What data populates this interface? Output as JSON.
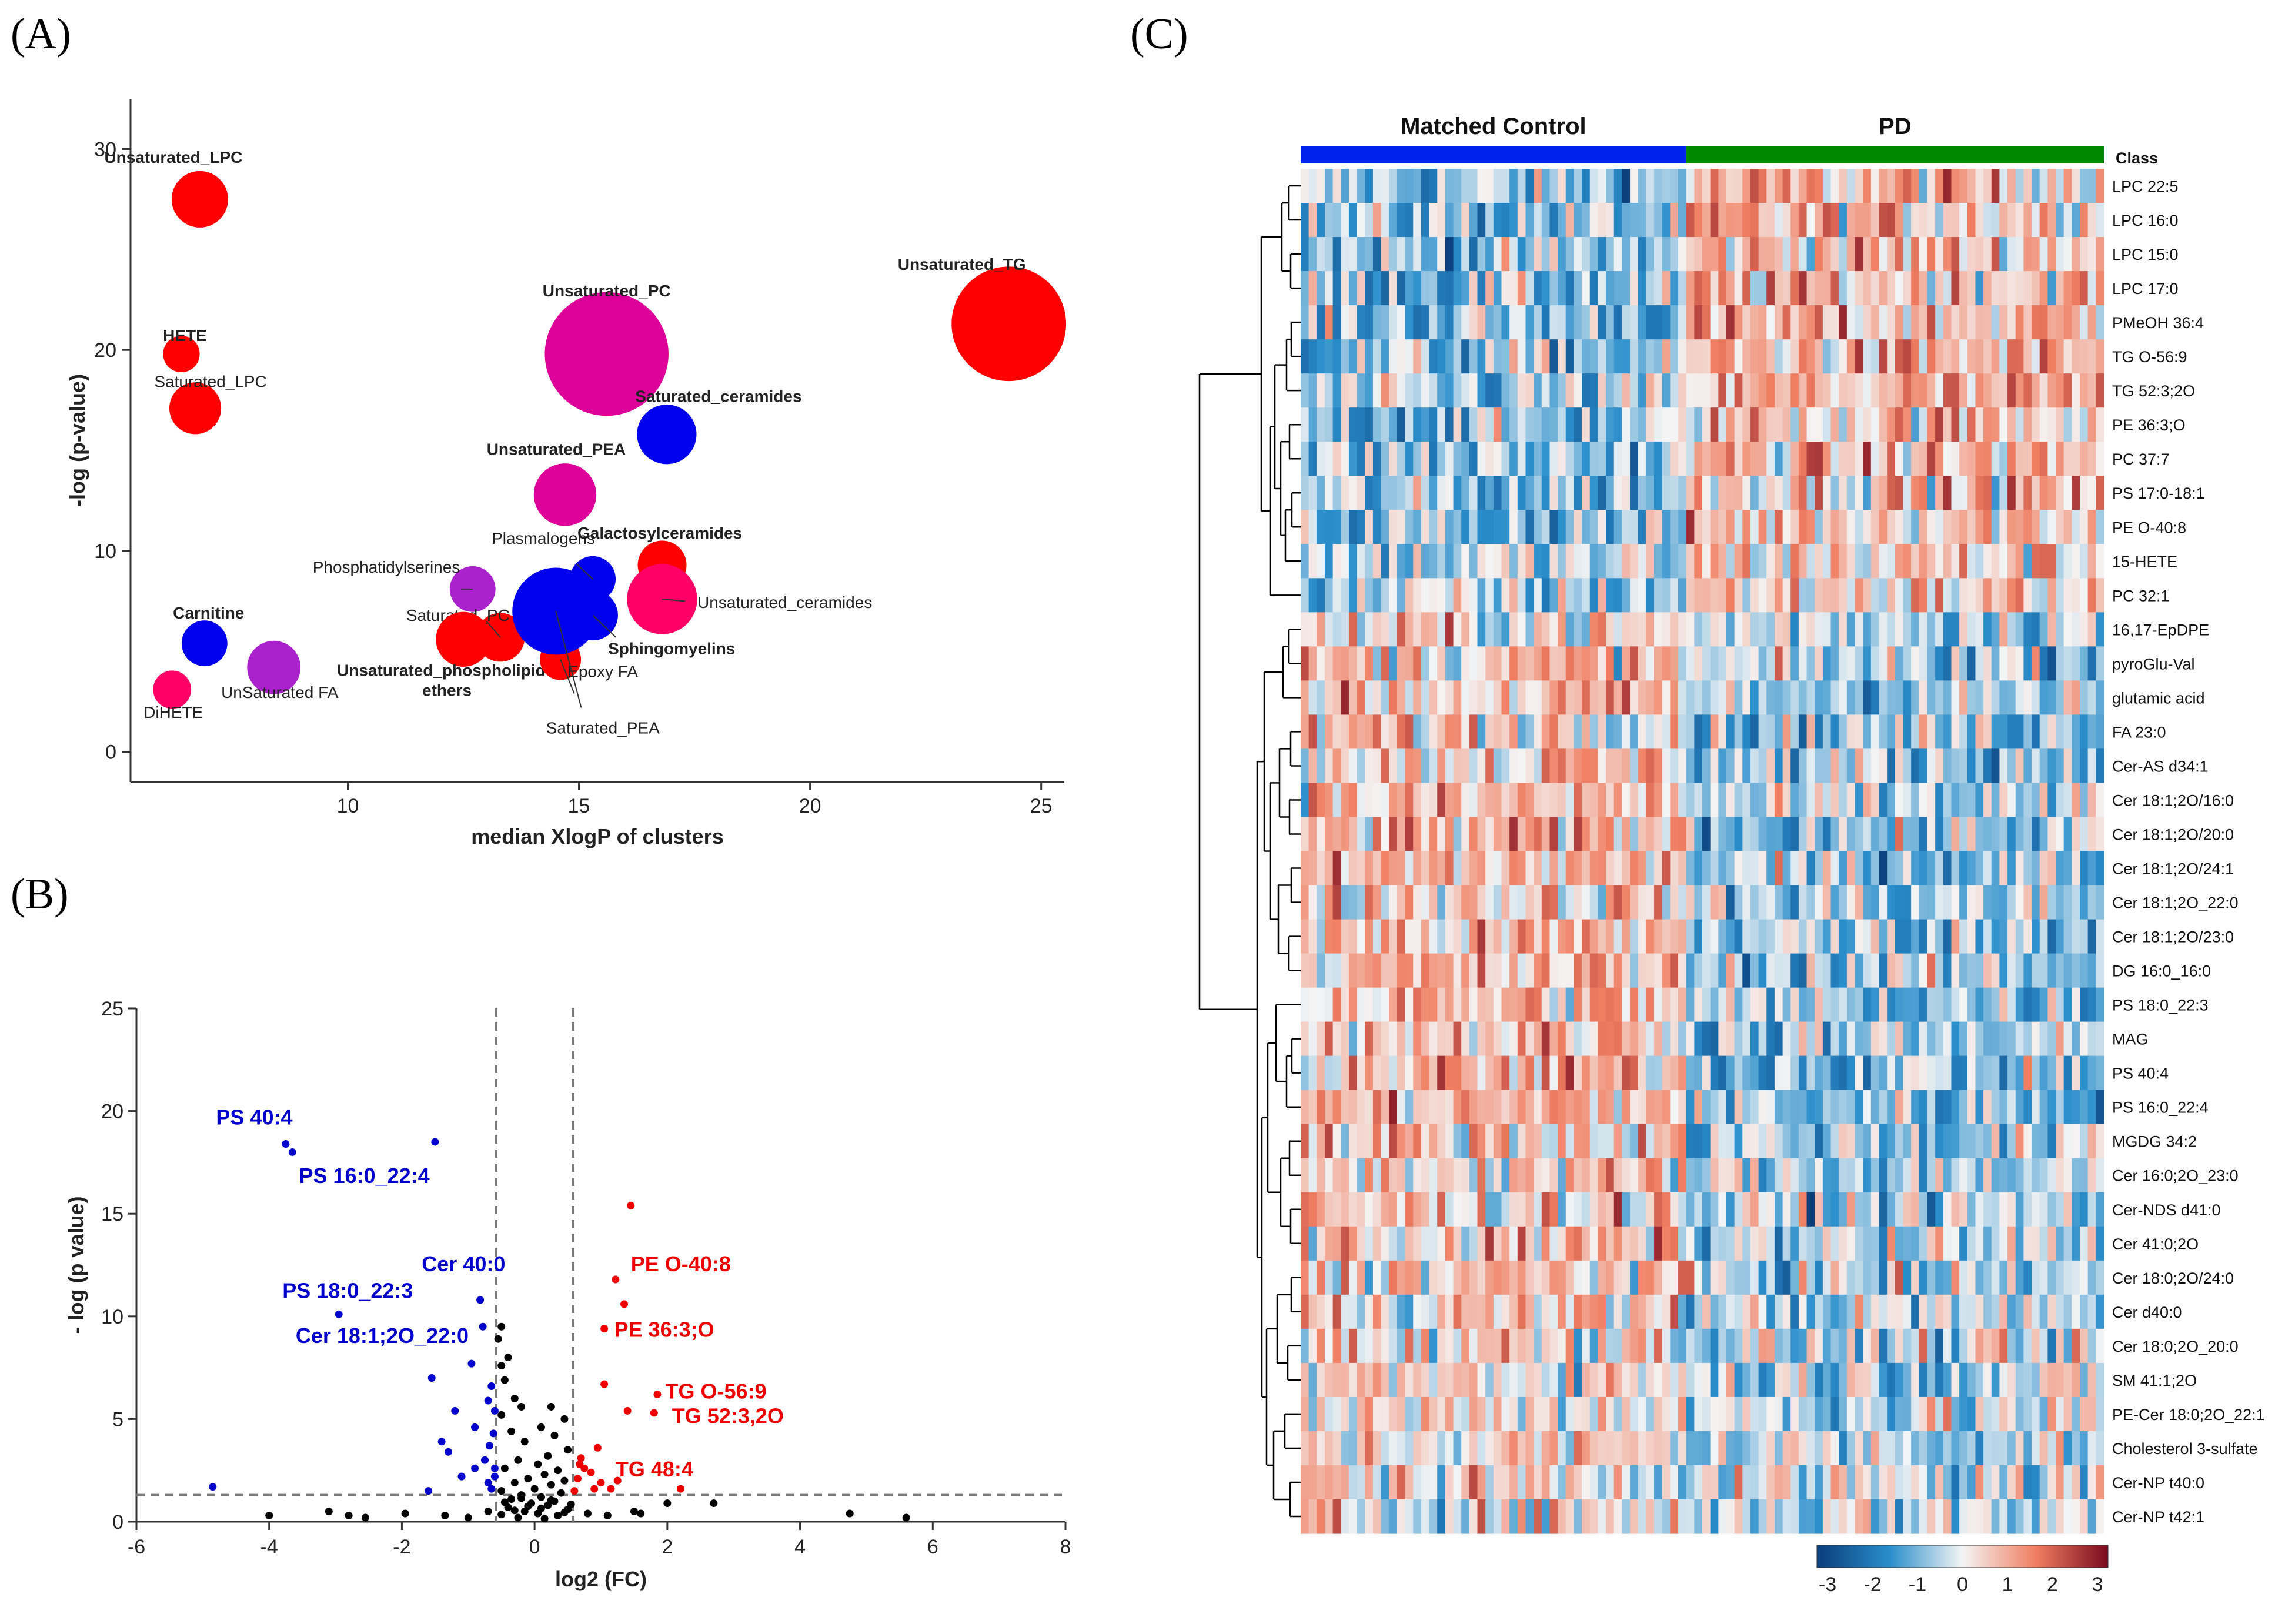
{
  "panels": {
    "a": "(A)",
    "b": "(B)",
    "c": "(C)"
  },
  "chart_data": [
    {
      "type": "scatter",
      "subtype": "bubble",
      "panel": "(A)",
      "title": "",
      "xlabel": "median XlogP of clusters",
      "ylabel": "-log (p-value)",
      "xlim": [
        5.3,
        25.5
      ],
      "ylim": [
        -1.5,
        32.5
      ],
      "xticks": [
        10,
        15,
        20,
        25
      ],
      "yticks": [
        0,
        10,
        20,
        30
      ],
      "colors": {
        "red": "#ff0000",
        "blue": "#0000ee",
        "magenta": "#dd0099",
        "purple": "#aa22cc",
        "pink": "#ff0066"
      },
      "points": [
        {
          "label": "Unsaturated_LPC",
          "x": 6.8,
          "y": 27.5,
          "size": 1.0,
          "color": "red",
          "bold": true
        },
        {
          "label": "HETE",
          "x": 6.4,
          "y": 19.8,
          "size": 0.35,
          "color": "red",
          "bold": true
        },
        {
          "label": "Saturated_LPC",
          "x": 6.7,
          "y": 17.1,
          "size": 0.85,
          "color": "red",
          "bold": false
        },
        {
          "label": "Unsaturated_TG",
          "x": 24.3,
          "y": 21.3,
          "size": 2.9,
          "color": "red",
          "bold": true
        },
        {
          "label": "Unsaturated_PC",
          "x": 15.6,
          "y": 19.8,
          "size": 3.2,
          "color": "magenta",
          "bold": true
        },
        {
          "label": "Saturated_ceramides",
          "x": 16.9,
          "y": 15.8,
          "size": 1.1,
          "color": "blue",
          "bold": true
        },
        {
          "label": "Unsaturated_PEA",
          "x": 14.7,
          "y": 12.8,
          "size": 1.2,
          "color": "magenta",
          "bold": true
        },
        {
          "label": "Galactosylceramides",
          "x": 16.8,
          "y": 9.3,
          "size": 0.75,
          "color": "red",
          "bold": true
        },
        {
          "label": "Plasmalogens",
          "x": 15.3,
          "y": 8.6,
          "size": 0.65,
          "color": "blue",
          "bold": false
        },
        {
          "label": "Unsaturated_ceramides",
          "x": 16.8,
          "y": 7.6,
          "size": 1.45,
          "color": "pink",
          "bold": false
        },
        {
          "label": "Phosphatidylserines",
          "x": 12.7,
          "y": 8.1,
          "size": 0.65,
          "color": "purple",
          "bold": false
        },
        {
          "label": "Sphingomyelins",
          "x": 15.3,
          "y": 6.8,
          "size": 0.8,
          "color": "blue",
          "bold": true
        },
        {
          "label": "Saturated_PC",
          "x": 13.3,
          "y": 5.7,
          "size": 0.75,
          "color": "red",
          "bold": false
        },
        {
          "label": "Unsaturated_phospholipid ethers",
          "x": 12.5,
          "y": 5.6,
          "size": 0.95,
          "color": "red",
          "bold": true
        },
        {
          "label": "Carnitine",
          "x": 6.9,
          "y": 5.4,
          "size": 0.65,
          "color": "blue",
          "bold": true
        },
        {
          "label": "UnSaturated FA",
          "x": 8.4,
          "y": 4.2,
          "size": 0.9,
          "color": "purple",
          "bold": false
        },
        {
          "label": "Epoxy FA",
          "x": 14.6,
          "y": 4.6,
          "size": 0.5,
          "color": "red",
          "bold": false
        },
        {
          "label": "Saturated_PEA",
          "x": 14.5,
          "y": 7.0,
          "size": 2.0,
          "color": "blue",
          "bold": false
        },
        {
          "label": "DiHETE",
          "x": 6.2,
          "y": 3.1,
          "size": 0.4,
          "color": "pink",
          "bold": false
        }
      ]
    },
    {
      "type": "scatter",
      "subtype": "volcano",
      "panel": "(B)",
      "title": "",
      "xlabel": "log2 (FC)",
      "ylabel": "- log (p value)",
      "xlim": [
        -6,
        8
      ],
      "ylim": [
        0,
        25
      ],
      "xticks": [
        -6,
        -4,
        -2,
        0,
        2,
        4,
        6,
        8
      ],
      "yticks": [
        0,
        5,
        10,
        15,
        20,
        25
      ],
      "thresholds": {
        "fc_low": -0.58,
        "fc_high": 0.58,
        "p": 1.3
      },
      "series": [
        {
          "name": "down",
          "color": "#0000cc",
          "points": [
            [
              -3.75,
              18.4
            ],
            [
              -3.65,
              18.0
            ],
            [
              -1.5,
              18.5
            ],
            [
              -2.95,
              10.1
            ],
            [
              -0.82,
              10.8
            ],
            [
              -0.78,
              9.5
            ],
            [
              -1.55,
              7.0
            ],
            [
              -0.95,
              7.7
            ],
            [
              -0.65,
              6.6
            ],
            [
              -0.7,
              5.9
            ],
            [
              -0.6,
              5.4
            ],
            [
              -1.2,
              5.4
            ],
            [
              -0.9,
              4.6
            ],
            [
              -1.4,
              3.9
            ],
            [
              -1.3,
              3.4
            ],
            [
              -0.75,
              3.0
            ],
            [
              -0.6,
              2.6
            ],
            [
              -1.6,
              1.5
            ],
            [
              -1.1,
              2.2
            ],
            [
              -0.65,
              1.6
            ],
            [
              -0.7,
              1.9
            ],
            [
              -4.85,
              1.7
            ],
            [
              -0.62,
              4.3
            ],
            [
              -0.68,
              3.7
            ],
            [
              -0.6,
              2.2
            ],
            [
              -0.9,
              2.6
            ]
          ]
        },
        {
          "name": "up",
          "color": "#ee0000",
          "points": [
            [
              1.45,
              15.4
            ],
            [
              1.22,
              11.8
            ],
            [
              1.35,
              10.6
            ],
            [
              1.05,
              9.4
            ],
            [
              1.05,
              6.7
            ],
            [
              1.85,
              6.2
            ],
            [
              1.4,
              5.4
            ],
            [
              1.8,
              5.3
            ],
            [
              0.95,
              3.6
            ],
            [
              0.75,
              2.6
            ],
            [
              0.65,
              2.1
            ],
            [
              0.85,
              2.4
            ],
            [
              1.0,
              1.9
            ],
            [
              0.7,
              3.1
            ],
            [
              1.15,
              1.6
            ],
            [
              0.9,
              1.6
            ],
            [
              2.2,
              1.6
            ],
            [
              0.68,
              2.8
            ],
            [
              0.6,
              1.5
            ],
            [
              1.25,
              2.0
            ]
          ]
        },
        {
          "name": "not significant",
          "color": "#000000",
          "points": [
            [
              -0.5,
              9.5
            ],
            [
              -0.55,
              8.9
            ],
            [
              -0.4,
              8.0
            ],
            [
              -0.5,
              7.6
            ],
            [
              -0.45,
              6.9
            ],
            [
              -0.3,
              6.0
            ],
            [
              -0.5,
              5.2
            ],
            [
              -0.2,
              5.6
            ],
            [
              0.25,
              5.6
            ],
            [
              0.45,
              5.0
            ],
            [
              0.1,
              4.6
            ],
            [
              -0.35,
              4.4
            ],
            [
              0.3,
              4.2
            ],
            [
              -0.15,
              3.9
            ],
            [
              0.5,
              3.5
            ],
            [
              0.2,
              3.2
            ],
            [
              -0.25,
              3.0
            ],
            [
              0.05,
              2.8
            ],
            [
              -0.45,
              2.6
            ],
            [
              0.35,
              2.5
            ],
            [
              0.15,
              2.3
            ],
            [
              -0.1,
              2.1
            ],
            [
              0.45,
              2.0
            ],
            [
              -0.3,
              1.9
            ],
            [
              0.25,
              1.8
            ],
            [
              0.0,
              1.6
            ],
            [
              -0.5,
              1.5
            ],
            [
              0.4,
              1.4
            ],
            [
              -0.2,
              1.3
            ],
            [
              0.1,
              1.2
            ],
            [
              -0.35,
              1.1
            ],
            [
              0.3,
              1.0
            ],
            [
              -0.05,
              0.9
            ],
            [
              0.2,
              0.8
            ],
            [
              -0.4,
              0.7
            ],
            [
              0.5,
              0.6
            ],
            [
              -0.15,
              0.5
            ],
            [
              0.05,
              0.4
            ],
            [
              0.35,
              0.3
            ],
            [
              -0.25,
              0.2
            ],
            [
              0.15,
              0.15
            ],
            [
              -0.5,
              0.35
            ],
            [
              0.45,
              0.45
            ],
            [
              -0.3,
              0.55
            ],
            [
              0.1,
              0.65
            ],
            [
              -0.1,
              0.75
            ],
            [
              0.55,
              0.85
            ],
            [
              -0.45,
              0.95
            ],
            [
              0.25,
              1.05
            ],
            [
              -0.2,
              1.15
            ],
            [
              -4.0,
              0.3
            ],
            [
              -3.1,
              0.5
            ],
            [
              -2.8,
              0.3
            ],
            [
              -2.55,
              0.2
            ],
            [
              -1.95,
              0.4
            ],
            [
              -1.35,
              0.3
            ],
            [
              -1.0,
              0.2
            ],
            [
              1.6,
              0.4
            ],
            [
              2.0,
              0.9
            ],
            [
              2.7,
              0.9
            ],
            [
              4.75,
              0.4
            ],
            [
              5.6,
              0.2
            ],
            [
              1.5,
              0.5
            ],
            [
              -0.7,
              0.5
            ],
            [
              0.8,
              0.4
            ],
            [
              1.1,
              0.3
            ]
          ]
        }
      ],
      "labels": [
        {
          "text": "PS 40:4",
          "x": -3.75,
          "y": 18.4,
          "color": "#0000cc"
        },
        {
          "text": "PS 16:0_22:4",
          "x": -3.65,
          "y": 18.0,
          "color": "#0000cc"
        },
        {
          "text": "PS 18:0_22:3",
          "x": -2.95,
          "y": 10.1,
          "color": "#0000cc"
        },
        {
          "text": "Cer 40:0",
          "x": -0.82,
          "y": 10.8,
          "color": "#0000cc"
        },
        {
          "text": "Cer 18:1;2O_22:0",
          "x": -0.78,
          "y": 9.5,
          "color": "#0000cc"
        },
        {
          "text": "PE O-40:8",
          "x": 1.22,
          "y": 11.8,
          "color": "#ee0000"
        },
        {
          "text": "PE 36:3;O",
          "x": 1.05,
          "y": 9.4,
          "color": "#ee0000"
        },
        {
          "text": "TG O-56:9",
          "x": 1.85,
          "y": 6.2,
          "color": "#ee0000"
        },
        {
          "text": "TG 52:3,2O",
          "x": 1.8,
          "y": 5.3,
          "color": "#ee0000"
        },
        {
          "text": "TG 48:4",
          "x": 1.0,
          "y": 1.9,
          "color": "#ee0000"
        }
      ]
    },
    {
      "type": "heatmap",
      "panel": "(C)",
      "title": "",
      "groups": [
        {
          "name": "Matched Control",
          "color": "#0022ee",
          "samples": 48
        },
        {
          "name": "PD",
          "color": "#008800",
          "samples": 52
        }
      ],
      "class_label": "Class",
      "rows": [
        "LPC 22:5",
        "LPC 16:0",
        "LPC 15:0",
        "LPC 17:0",
        "PMeOH 36:4",
        "TG O-56:9",
        "TG 52:3;2O",
        "PE 36:3;O",
        "PC 37:7",
        "PS 17:0-18:1",
        "PE O-40:8",
        "15-HETE",
        "PC 32:1",
        "16,17-EpDPE",
        "pyroGlu-Val",
        "glutamic acid",
        "FA 23:0",
        "Cer-AS d34:1",
        "Cer 18:1;2O/16:0",
        "Cer 18:1;2O/20:0",
        "Cer 18:1;2O/24:1",
        "Cer 18:1;2O_22:0",
        "Cer 18:1;2O/23:0",
        "DG 16:0_16:0",
        "PS 18:0_22:3",
        "MAG",
        "PS 40:4",
        "PS 16:0_22:4",
        "MGDG 34:2",
        "Cer 16:0;2O_23:0",
        "Cer-NDS d41:0",
        "Cer 41:0;2O",
        "Cer 18:0;2O/24:0",
        "Cer d40:0",
        "Cer 18:0;2O_20:0",
        "SM 41:1;2O",
        "PE-Cer 18:0;2O_22:1",
        "Cholesterol 3-sulfate",
        "Cer-NP t40:0",
        "Cer-NP t42:1"
      ],
      "row_direction": [
        -1,
        -1,
        -1,
        -1,
        -1,
        -1,
        -1,
        -1,
        -1,
        -1,
        -1,
        -0.6,
        -0.7,
        0.3,
        0.7,
        0.8,
        0.8,
        0.8,
        0.8,
        0.9,
        0.9,
        0.8,
        0.8,
        0.8,
        0.9,
        1.0,
        1.0,
        1.0,
        0.8,
        0.6,
        0.7,
        0.7,
        0.7,
        0.6,
        0.6,
        0.5,
        0.4,
        0.4,
        0.4,
        0.3
      ],
      "colorbar": {
        "min": -3,
        "max": 3,
        "ticks": [
          -3,
          -2,
          -1,
          0,
          1,
          2,
          3
        ],
        "colors": [
          "#0a3d7a",
          "#2a8ecb",
          "#f4f4f4",
          "#f07f62",
          "#7a0a1e"
        ]
      }
    }
  ]
}
